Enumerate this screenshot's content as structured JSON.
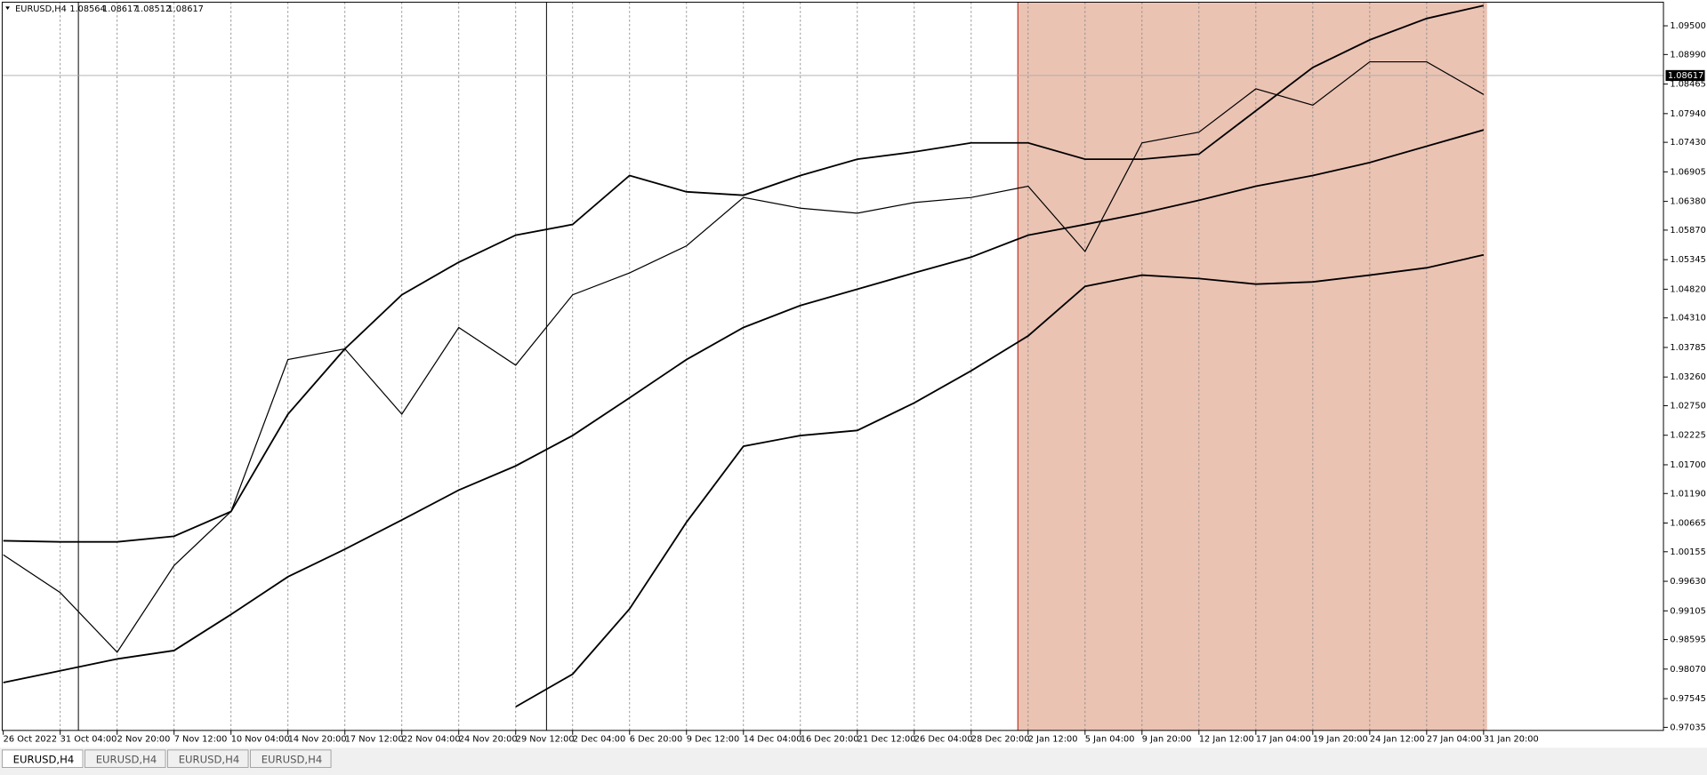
{
  "header": {
    "symbol": "EURUSD,H4",
    "ohlc": [
      1.08564,
      1.08617,
      1.08512,
      1.08617
    ]
  },
  "chart_data": {
    "type": "line",
    "categories": [
      "26 Oct 2022",
      "31 Oct 04:00",
      "2 Nov 20:00",
      "7 Nov 12:00",
      "10 Nov 04:00",
      "14 Nov 20:00",
      "17 Nov 12:00",
      "22 Nov 04:00",
      "24 Nov 20:00",
      "29 Nov 12:00",
      "2 Dec 04:00",
      "6 Dec 20:00",
      "9 Dec 12:00",
      "14 Dec 04:00",
      "16 Dec 20:00",
      "21 Dec 12:00",
      "26 Dec 04:00",
      "28 Dec 20:00",
      "2 Jan 12:00",
      "5 Jan 04:00",
      "9 Jan 20:00",
      "12 Jan 12:00",
      "17 Jan 04:00",
      "19 Jan 20:00",
      "24 Jan 12:00",
      "27 Jan 04:00",
      "31 Jan 20:00"
    ],
    "series": [
      {
        "color": "#000000",
        "values": [
          1.001,
          0.9943,
          0.9837,
          0.9991,
          1.0087,
          1.0357,
          1.0376,
          1.026,
          1.0414,
          1.0347,
          1.0472,
          1.0511,
          1.0559,
          1.0645,
          1.0626,
          1.0617,
          1.0636,
          1.0645,
          1.0665,
          1.0549,
          1.0742,
          1.0761,
          1.0838,
          1.0809,
          1.0886,
          1.0886,
          1.0828
        ]
      },
      {
        "color": "#000000",
        "values": [
          1.0035,
          1.0033,
          1.0033,
          1.0043,
          1.0087,
          1.026,
          1.0376,
          1.0472,
          1.053,
          1.0578,
          1.0597,
          1.0684,
          1.0655,
          1.0649,
          1.0684,
          1.0713,
          1.0726,
          1.0742,
          1.0742,
          1.0713,
          1.0713,
          1.0722,
          1.0799,
          1.0876,
          1.0925,
          1.0963,
          1.0986
        ]
      },
      {
        "color": "#000000",
        "values": [
          0.9783,
          0.9804,
          0.9825,
          0.984,
          0.9904,
          0.9971,
          1.002,
          1.0072,
          1.0125,
          1.0168,
          1.0222,
          1.0289,
          1.0357,
          1.0414,
          1.0453,
          1.0482,
          1.0511,
          1.0539,
          1.0578,
          1.0597,
          1.0617,
          1.064,
          1.0665,
          1.0684,
          1.0707,
          1.0736,
          1.0765
        ]
      },
      {
        "color": "#000000",
        "values": [
          null,
          null,
          null,
          null,
          null,
          null,
          null,
          null,
          null,
          0.974,
          0.9798,
          0.9914,
          1.0068,
          1.0203,
          1.0222,
          1.0231,
          1.028,
          1.0337,
          1.0399,
          1.0487,
          1.0507,
          1.0501,
          1.0491,
          1.0495,
          1.0507,
          1.052,
          1.0543
        ]
      }
    ],
    "current_price": 1.08617,
    "ylim": [
      0.9698,
      1.0992
    ],
    "yticks": [
      {
        "value": 1.095,
        "label": "1.09500"
      },
      {
        "value": 1.0899,
        "label": "1.08990"
      },
      1.08465,
      {
        "value": 1.0794,
        "label": "1.07940"
      },
      {
        "value": 1.0743,
        "label": "1.07430"
      },
      1.06905,
      {
        "value": 1.0638,
        "label": "1.06380"
      },
      {
        "value": 1.0587,
        "label": "1.05870"
      },
      1.05345,
      {
        "value": 1.0482,
        "label": "1.04820"
      },
      {
        "value": 1.0431,
        "label": "1.04310"
      },
      1.03785,
      {
        "value": 1.0326,
        "label": "1.03260"
      },
      {
        "value": 1.0275,
        "label": "1.02750"
      },
      1.02225,
      {
        "value": 1.017,
        "label": "1.01700"
      },
      {
        "value": 1.0119,
        "label": "1.01190"
      },
      1.00665,
      1.00155,
      {
        "value": 0.9963,
        "label": "0.99630"
      },
      0.99105,
      0.98595,
      {
        "value": 0.9807,
        "label": "0.98070"
      },
      0.97545,
      0.97035
    ],
    "grid": true
  },
  "tabs": [
    "EURUSD,H4",
    "EURUSD,H4",
    "EURUSD,H4",
    "EURUSD,H4"
  ]
}
